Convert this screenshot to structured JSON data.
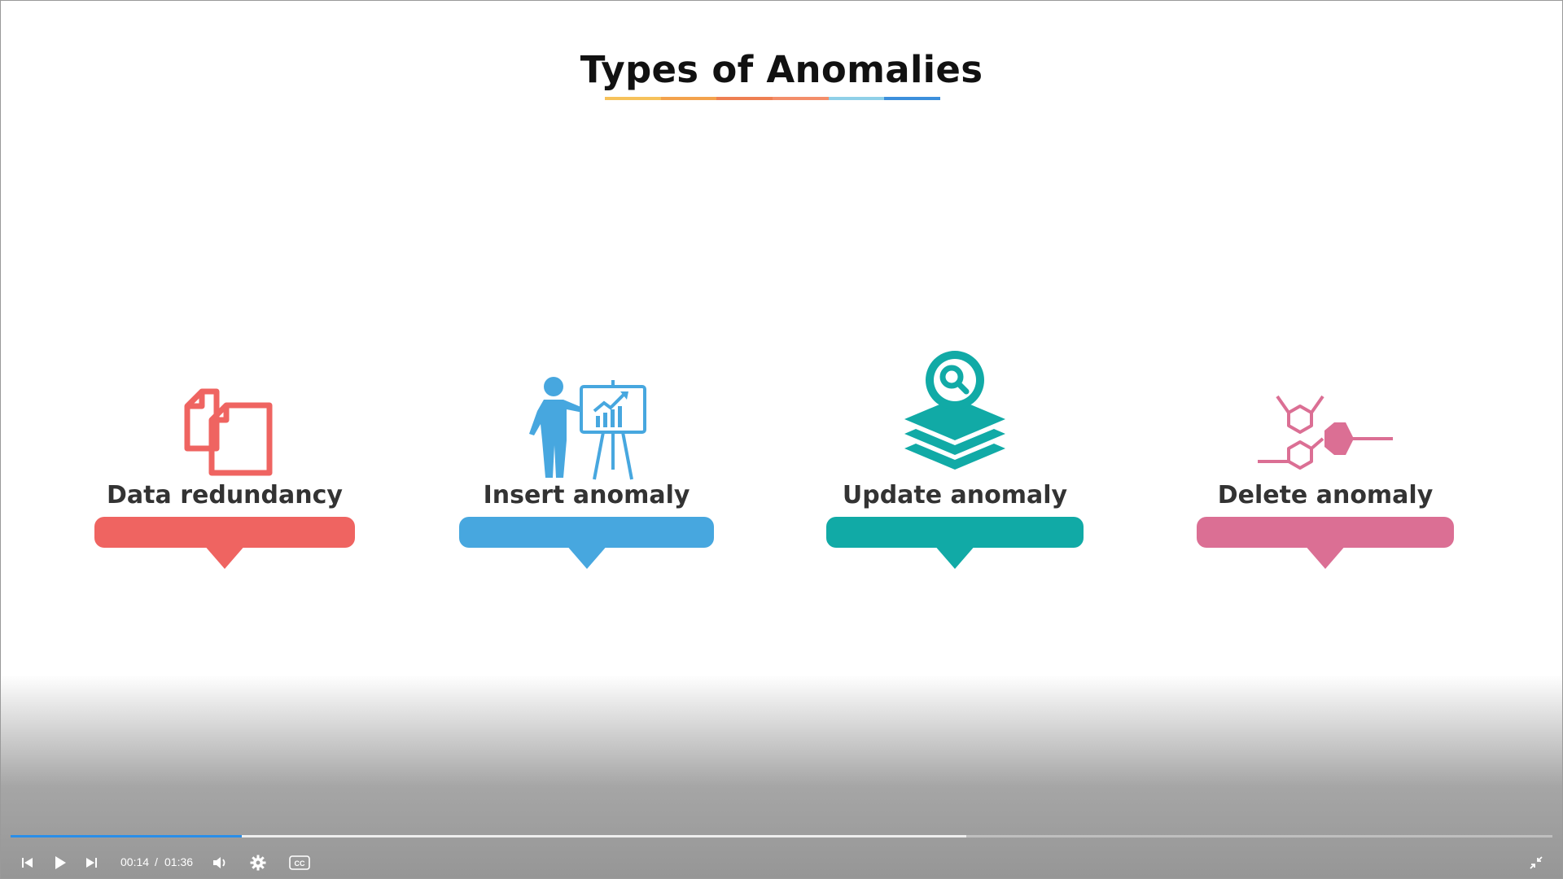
{
  "slide": {
    "title": "Types of Anomalies",
    "underline_colors": [
      "#f6c25b",
      "#f3a24d",
      "#ee7f52",
      "#f38e6a",
      "#8fd0e8",
      "#3c8fdc"
    ],
    "cards": [
      {
        "label": "Data redundancy",
        "color": "#ef6461",
        "icon": "copy-documents-icon"
      },
      {
        "label": "Insert anomaly",
        "color": "#47a7df",
        "icon": "presenter-chart-icon"
      },
      {
        "label": "Update anomaly",
        "color": "#11aaa6",
        "icon": "layers-search-icon"
      },
      {
        "label": "Delete anomaly",
        "color": "#db6f94",
        "icon": "hexagon-molecule-icon"
      }
    ]
  },
  "player": {
    "current_time": "00:14",
    "separator": "/",
    "duration": "01:36",
    "progress_played_fraction": 0.15,
    "progress_buffered_fraction": 0.62,
    "accent_color": "#2a8ee8",
    "controls": [
      "previous-icon",
      "play-icon",
      "next-icon",
      "volume-icon",
      "settings-gear-icon",
      "closed-captions-icon",
      "exit-fullscreen-icon"
    ]
  }
}
